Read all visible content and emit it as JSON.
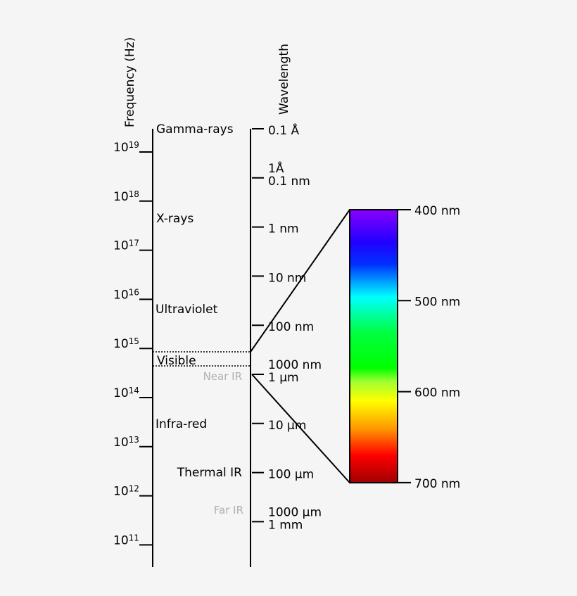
{
  "axes": {
    "frequency": "Frequency (Hz)",
    "wavelength": "Wavelength"
  },
  "frequency_labels": [
    {
      "base": "10",
      "exponent": "19"
    },
    {
      "base": "10",
      "exponent": "18"
    },
    {
      "base": "10",
      "exponent": "17"
    },
    {
      "base": "10",
      "exponent": "16"
    },
    {
      "base": "10",
      "exponent": "15"
    },
    {
      "base": "10",
      "exponent": "14"
    },
    {
      "base": "10",
      "exponent": "13"
    },
    {
      "base": "10",
      "exponent": "12"
    },
    {
      "base": "10",
      "exponent": "11"
    }
  ],
  "bands": {
    "gamma": "Gamma-rays",
    "xrays": "X-rays",
    "uv": "Ultraviolet",
    "visible": "Visible",
    "near_ir": "Near IR",
    "ir": "Infra-red",
    "thermal_ir": "Thermal IR",
    "far_ir": "Far IR"
  },
  "wavelength_labels": [
    [
      "0.1 Å"
    ],
    [
      "1Å",
      "0.1 nm"
    ],
    [
      "1 nm"
    ],
    [
      "10 nm"
    ],
    [
      "100 nm"
    ],
    [
      "1000 nm",
      "1 µm"
    ],
    [
      "10 µm"
    ],
    [
      "100 µm"
    ],
    [
      "1000 µm",
      "1 mm"
    ]
  ],
  "spectrum_labels": [
    "400 nm",
    "500 nm",
    "600 nm",
    "700 nm"
  ]
}
